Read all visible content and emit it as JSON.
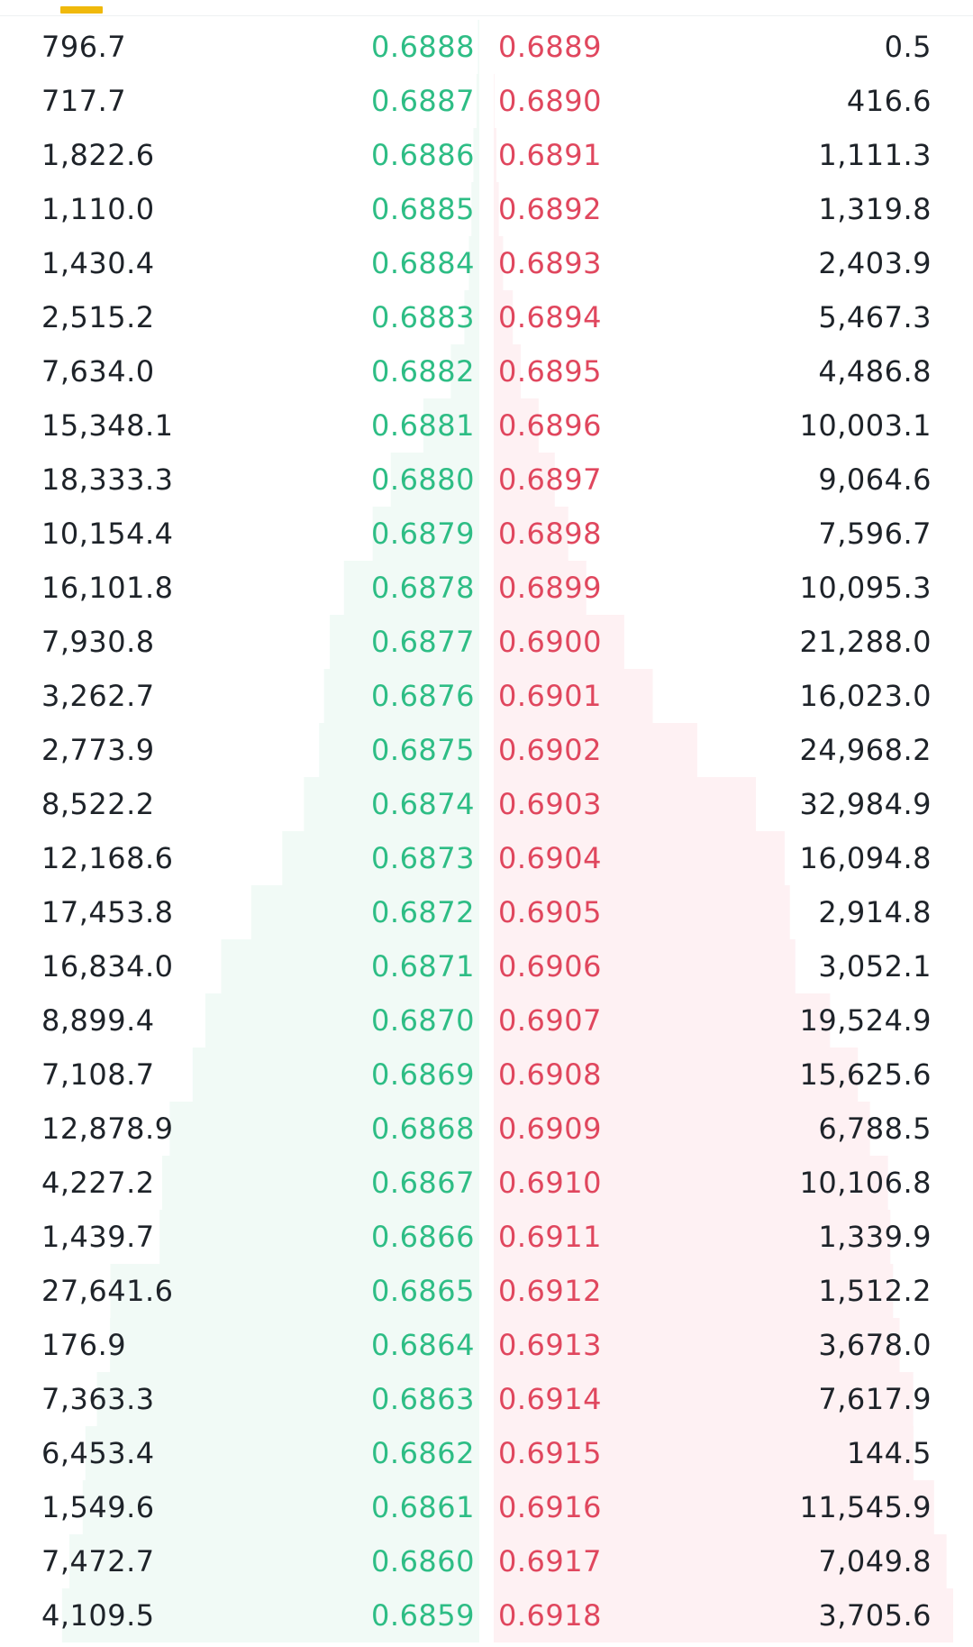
{
  "colors": {
    "bid": "#2ebd85",
    "ask": "#e0475e",
    "bid_depth": "#f1faf6",
    "ask_depth": "#fef1f3",
    "accent": "#f0b90b"
  },
  "tabs": {
    "active_indicator": true
  },
  "order_book": {
    "rows": [
      {
        "bid_qty": "796.7",
        "bid_price": "0.6888",
        "ask_price": "0.6889",
        "ask_qty": "0.5"
      },
      {
        "bid_qty": "717.7",
        "bid_price": "0.6887",
        "ask_price": "0.6890",
        "ask_qty": "416.6"
      },
      {
        "bid_qty": "1,822.6",
        "bid_price": "0.6886",
        "ask_price": "0.6891",
        "ask_qty": "1,111.3"
      },
      {
        "bid_qty": "1,110.0",
        "bid_price": "0.6885",
        "ask_price": "0.6892",
        "ask_qty": "1,319.8"
      },
      {
        "bid_qty": "1,430.4",
        "bid_price": "0.6884",
        "ask_price": "0.6893",
        "ask_qty": "2,403.9"
      },
      {
        "bid_qty": "2,515.2",
        "bid_price": "0.6883",
        "ask_price": "0.6894",
        "ask_qty": "5,467.3"
      },
      {
        "bid_qty": "7,634.0",
        "bid_price": "0.6882",
        "ask_price": "0.6895",
        "ask_qty": "4,486.8"
      },
      {
        "bid_qty": "15,348.1",
        "bid_price": "0.6881",
        "ask_price": "0.6896",
        "ask_qty": "10,003.1"
      },
      {
        "bid_qty": "18,333.3",
        "bid_price": "0.6880",
        "ask_price": "0.6897",
        "ask_qty": "9,064.6"
      },
      {
        "bid_qty": "10,154.4",
        "bid_price": "0.6879",
        "ask_price": "0.6898",
        "ask_qty": "7,596.7"
      },
      {
        "bid_qty": "16,101.8",
        "bid_price": "0.6878",
        "ask_price": "0.6899",
        "ask_qty": "10,095.3"
      },
      {
        "bid_qty": "7,930.8",
        "bid_price": "0.6877",
        "ask_price": "0.6900",
        "ask_qty": "21,288.0"
      },
      {
        "bid_qty": "3,262.7",
        "bid_price": "0.6876",
        "ask_price": "0.6901",
        "ask_qty": "16,023.0"
      },
      {
        "bid_qty": "2,773.9",
        "bid_price": "0.6875",
        "ask_price": "0.6902",
        "ask_qty": "24,968.2"
      },
      {
        "bid_qty": "8,522.2",
        "bid_price": "0.6874",
        "ask_price": "0.6903",
        "ask_qty": "32,984.9"
      },
      {
        "bid_qty": "12,168.6",
        "bid_price": "0.6873",
        "ask_price": "0.6904",
        "ask_qty": "16,094.8"
      },
      {
        "bid_qty": "17,453.8",
        "bid_price": "0.6872",
        "ask_price": "0.6905",
        "ask_qty": "2,914.8"
      },
      {
        "bid_qty": "16,834.0",
        "bid_price": "0.6871",
        "ask_price": "0.6906",
        "ask_qty": "3,052.1"
      },
      {
        "bid_qty": "8,899.4",
        "bid_price": "0.6870",
        "ask_price": "0.6907",
        "ask_qty": "19,524.9"
      },
      {
        "bid_qty": "7,108.7",
        "bid_price": "0.6869",
        "ask_price": "0.6908",
        "ask_qty": "15,625.6"
      },
      {
        "bid_qty": "12,878.9",
        "bid_price": "0.6868",
        "ask_price": "0.6909",
        "ask_qty": "6,788.5"
      },
      {
        "bid_qty": "4,227.2",
        "bid_price": "0.6867",
        "ask_price": "0.6910",
        "ask_qty": "10,106.8"
      },
      {
        "bid_qty": "1,439.7",
        "bid_price": "0.6866",
        "ask_price": "0.6911",
        "ask_qty": "1,339.9"
      },
      {
        "bid_qty": "27,641.6",
        "bid_price": "0.6865",
        "ask_price": "0.6912",
        "ask_qty": "1,512.2"
      },
      {
        "bid_qty": "176.9",
        "bid_price": "0.6864",
        "ask_price": "0.6913",
        "ask_qty": "3,678.0"
      },
      {
        "bid_qty": "7,363.3",
        "bid_price": "0.6863",
        "ask_price": "0.6914",
        "ask_qty": "7,617.9"
      },
      {
        "bid_qty": "6,453.4",
        "bid_price": "0.6862",
        "ask_price": "0.6915",
        "ask_qty": "144.5"
      },
      {
        "bid_qty": "1,549.6",
        "bid_price": "0.6861",
        "ask_price": "0.6916",
        "ask_qty": "11,545.9"
      },
      {
        "bid_qty": "7,472.7",
        "bid_price": "0.6860",
        "ask_price": "0.6917",
        "ask_qty": "7,049.8"
      },
      {
        "bid_qty": "4,109.5",
        "bid_price": "0.6859",
        "ask_price": "0.6918",
        "ask_qty": "3,705.6"
      }
    ]
  }
}
